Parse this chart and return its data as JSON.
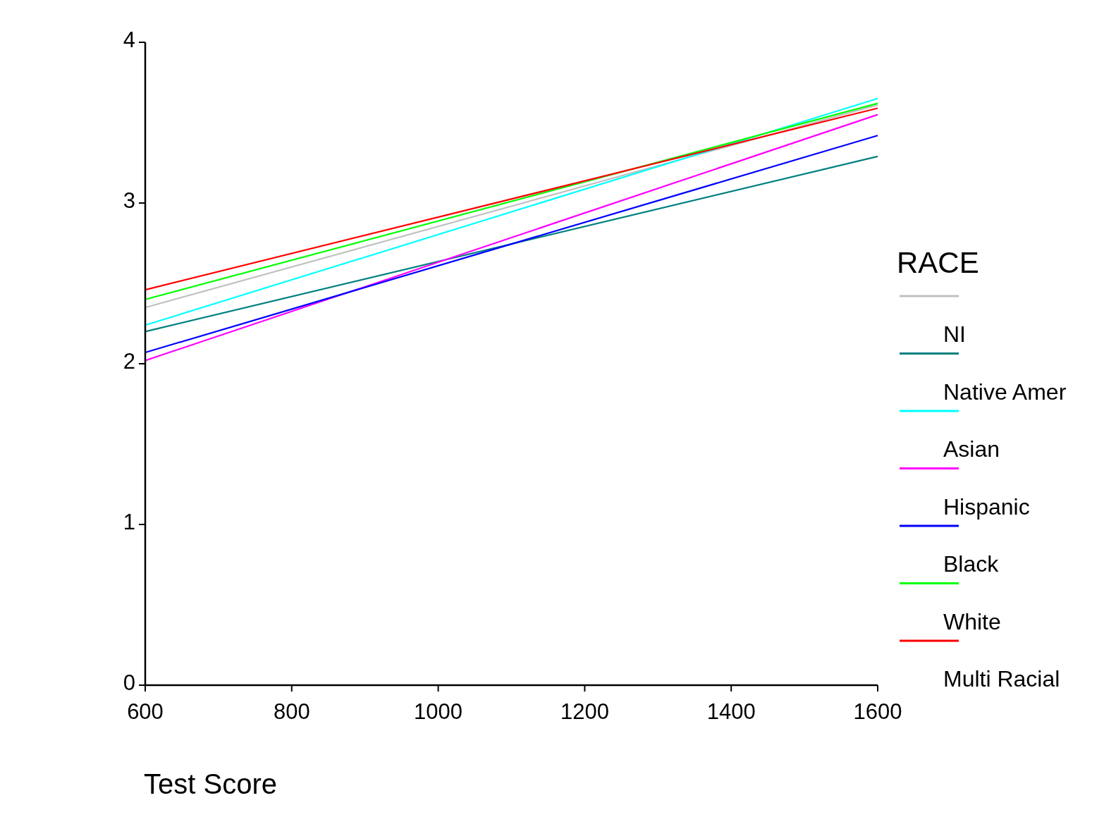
{
  "chart_data": {
    "type": "line",
    "xlabel": "Test Score",
    "legend_title": "RACE",
    "legend": "right",
    "grid": false,
    "marker": "none",
    "line_style": "solid",
    "xlim": [
      600,
      1600
    ],
    "xticks": [
      600,
      800,
      1000,
      1200,
      1400,
      1600
    ],
    "ylim": [
      0,
      4
    ],
    "yticks": [
      0,
      1,
      2,
      3,
      4
    ],
    "x": [
      600,
      1600
    ],
    "series": [
      {
        "name": "NI",
        "color": "#c0c0c0",
        "values": [
          2.35,
          3.61
        ]
      },
      {
        "name": "Native Amer",
        "color": "#008080",
        "values": [
          2.2,
          3.29
        ]
      },
      {
        "name": "Asian",
        "color": "#00ffff",
        "values": [
          2.24,
          3.65
        ]
      },
      {
        "name": "Hispanic",
        "color": "#ff00ff",
        "values": [
          2.02,
          3.55
        ]
      },
      {
        "name": "Black",
        "color": "#0000ff",
        "values": [
          2.07,
          3.42
        ]
      },
      {
        "name": "White",
        "color": "#00ff00",
        "values": [
          2.4,
          3.62
        ]
      },
      {
        "name": "Multi Racial",
        "color": "#ff0000",
        "values": [
          2.46,
          3.59
        ]
      }
    ]
  }
}
